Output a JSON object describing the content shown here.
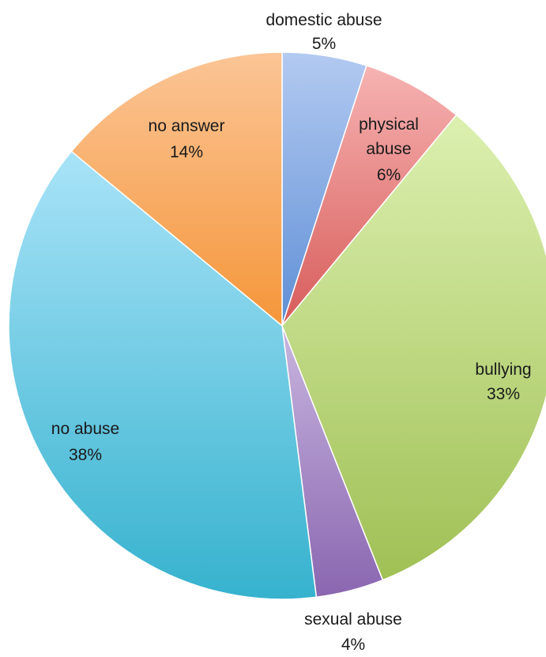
{
  "chart_data": {
    "type": "pie",
    "title": "",
    "start_angle_deg": 0,
    "direction": "clockwise",
    "slices": [
      {
        "label": "domestic abuse",
        "value": 5,
        "value_label": "5%",
        "color_light": "#b3caf1",
        "color_dark": "#5f8fd6"
      },
      {
        "label": "physical abuse",
        "value": 6,
        "value_label": "6%",
        "color_light": "#f6b3b2",
        "color_dark": "#d75c5a"
      },
      {
        "label": "bullying",
        "value": 33,
        "value_label": "33%",
        "color_light": "#dcf0b0",
        "color_dark": "#a0c055"
      },
      {
        "label": "sexual abuse",
        "value": 4,
        "value_label": "4%",
        "color_light": "#c8b6df",
        "color_dark": "#8a66b0"
      },
      {
        "label": "no abuse",
        "value": 38,
        "value_label": "38%",
        "color_light": "#a9e3f8",
        "color_dark": "#36b2ce"
      },
      {
        "label": "no answer",
        "value": 14,
        "value_label": "14%",
        "color_light": "#fbc596",
        "color_dark": "#f5963a"
      }
    ],
    "legend": "none"
  }
}
